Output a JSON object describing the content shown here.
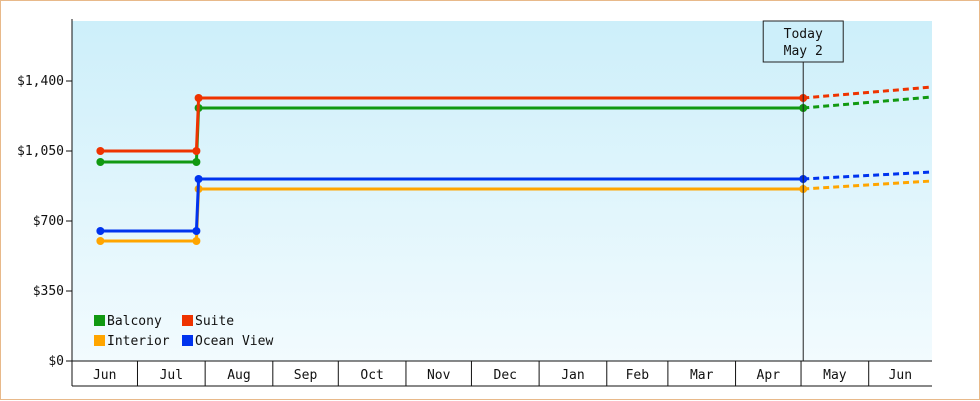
{
  "chart_data": {
    "type": "line",
    "title": "",
    "xlabel": "",
    "ylabel": "",
    "ylim": [
      0,
      1700
    ],
    "yticks": [
      0,
      350,
      700,
      1050,
      1400
    ],
    "ytick_labels": [
      "$0",
      "$350",
      "$700",
      "$1,050",
      "$1,400"
    ],
    "x_start": "2024-06-01",
    "x_end": "2025-06-30",
    "months": [
      {
        "label": "Jun",
        "start": "2024-06-01"
      },
      {
        "label": "Jul",
        "start": "2024-07-01"
      },
      {
        "label": "Aug",
        "start": "2024-08-01"
      },
      {
        "label": "Sep",
        "start": "2024-09-01"
      },
      {
        "label": "Oct",
        "start": "2024-10-01"
      },
      {
        "label": "Nov",
        "start": "2024-11-01"
      },
      {
        "label": "Dec",
        "start": "2024-12-01"
      },
      {
        "label": "Jan",
        "start": "2025-01-01"
      },
      {
        "label": "Feb",
        "start": "2025-02-01"
      },
      {
        "label": "Mar",
        "start": "2025-03-01"
      },
      {
        "label": "Apr",
        "start": "2025-04-01"
      },
      {
        "label": "May",
        "start": "2025-05-01"
      },
      {
        "label": "Jun",
        "start": "2025-06-01"
      }
    ],
    "today": {
      "label_line1": "Today",
      "label_line2": "May 2",
      "date": "2025-05-02"
    },
    "legend_position": "bottom-left",
    "grid": false,
    "series": [
      {
        "name": "Balcony",
        "color": "#119911",
        "points": [
          {
            "x": "2024-06-14",
            "y": 995
          },
          {
            "x": "2024-07-28",
            "y": 995
          },
          {
            "x": "2024-07-29",
            "y": 1265
          },
          {
            "x": "2025-05-02",
            "y": 1265
          }
        ],
        "projection_end": {
          "x": "2025-06-30",
          "y": 1320
        }
      },
      {
        "name": "Suite",
        "color": "#ee3300",
        "points": [
          {
            "x": "2024-06-14",
            "y": 1050
          },
          {
            "x": "2024-07-28",
            "y": 1050
          },
          {
            "x": "2024-07-29",
            "y": 1315
          },
          {
            "x": "2025-05-02",
            "y": 1315
          }
        ],
        "projection_end": {
          "x": "2025-06-30",
          "y": 1370
        }
      },
      {
        "name": "Interior",
        "color": "#ffa500",
        "points": [
          {
            "x": "2024-06-14",
            "y": 600
          },
          {
            "x": "2024-07-28",
            "y": 600
          },
          {
            "x": "2024-07-29",
            "y": 860
          },
          {
            "x": "2025-05-02",
            "y": 860
          }
        ],
        "projection_end": {
          "x": "2025-06-30",
          "y": 900
        }
      },
      {
        "name": "Ocean View",
        "color": "#0033ee",
        "points": [
          {
            "x": "2024-06-14",
            "y": 650
          },
          {
            "x": "2024-07-28",
            "y": 650
          },
          {
            "x": "2024-07-29",
            "y": 910
          },
          {
            "x": "2025-05-02",
            "y": 910
          }
        ],
        "projection_end": {
          "x": "2025-06-30",
          "y": 945
        }
      }
    ]
  }
}
